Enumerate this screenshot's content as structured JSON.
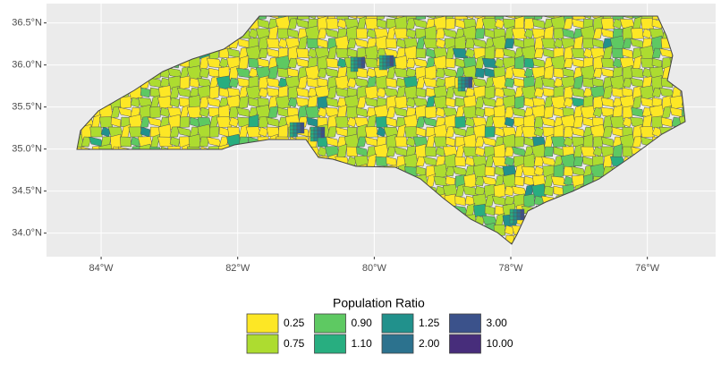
{
  "chart_data": {
    "type": "map",
    "xlim": [
      -84.8,
      -75.0
    ],
    "ylim": [
      33.72,
      36.73
    ],
    "xticks": [
      {
        "value": -84,
        "label": "84°W"
      },
      {
        "value": -82,
        "label": "82°W"
      },
      {
        "value": -80,
        "label": "80°W"
      },
      {
        "value": -78,
        "label": "78°W"
      },
      {
        "value": -76,
        "label": "76°W"
      }
    ],
    "yticks": [
      {
        "value": 34.0,
        "label": "34.0°N"
      },
      {
        "value": 34.5,
        "label": "34.5°N"
      },
      {
        "value": 35.0,
        "label": "35.0°N"
      },
      {
        "value": 35.5,
        "label": "35.5°N"
      },
      {
        "value": 36.0,
        "label": "36.0°N"
      },
      {
        "value": 36.5,
        "label": "36.5°N"
      }
    ],
    "grid": true,
    "legend": {
      "title": "Population Ratio",
      "items": [
        {
          "label": "0.25",
          "color": "#fde725"
        },
        {
          "label": "0.75",
          "color": "#addc30"
        },
        {
          "label": "0.90",
          "color": "#5ec962"
        },
        {
          "label": "1.10",
          "color": "#28ae80"
        },
        {
          "label": "1.25",
          "color": "#21918c"
        },
        {
          "label": "2.00",
          "color": "#2c728e"
        },
        {
          "label": "3.00",
          "color": "#3b528b"
        },
        {
          "label": "10.00",
          "color": "#472d7b"
        }
      ]
    }
  }
}
